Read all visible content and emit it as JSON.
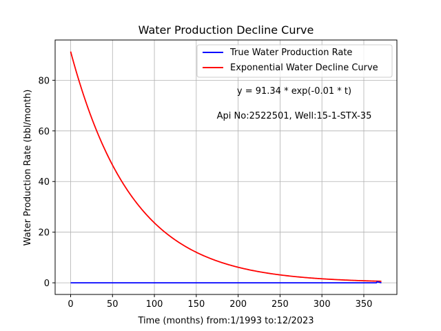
{
  "chart_data": {
    "type": "line",
    "title": "Water Production Decline Curve",
    "xlabel": "Time (months) from:1/1993 to:12/2023",
    "ylabel": "Water Production Rate (bbl/month)",
    "xlim": [
      -18.5,
      389.5
    ],
    "ylim": [
      -4.6,
      95.9
    ],
    "xticks": [
      0,
      50,
      100,
      150,
      200,
      250,
      300,
      350
    ],
    "yticks": [
      0,
      20,
      40,
      60,
      80
    ],
    "grid": true,
    "legend_position": "top-right",
    "series": [
      {
        "name": "True Water Production Rate",
        "color": "#0000ff",
        "x": [
          0,
          50,
          100,
          150,
          200,
          250,
          300,
          350,
          365,
          366,
          371
        ],
        "y": [
          0,
          0,
          0,
          0,
          0,
          0,
          0,
          0,
          0,
          0.4,
          0
        ]
      },
      {
        "name": "Exponential Water Decline Curve",
        "color": "#ff0000",
        "equation": {
          "a": 91.34,
          "b": 0.0135
        },
        "x_range": [
          0,
          371
        ]
      }
    ],
    "annotations": [
      "y = 91.34 * exp(-0.01 * t)",
      "Api No:2522501, Well:15-1-STX-35"
    ]
  }
}
